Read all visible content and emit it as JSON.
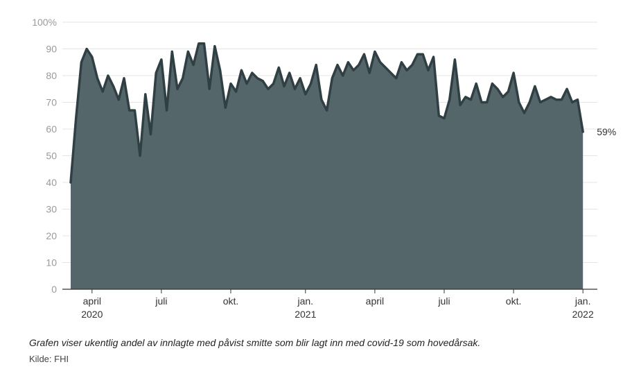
{
  "caption": "Grafen viser ukentlig andel av innlagte med påvist smitte som blir lagt inn med covid-19 som hovedårsak.",
  "source": "Kilde: FHI",
  "chart_data": {
    "type": "area",
    "title": "",
    "xlabel": "",
    "ylabel": "",
    "ylim": [
      0,
      100
    ],
    "y_ticks": [
      "0",
      "10",
      "20",
      "30",
      "40",
      "50",
      "60",
      "70",
      "80",
      "90",
      "100%"
    ],
    "x_ticks": [
      {
        "label": "april",
        "year": "2020",
        "week": 4
      },
      {
        "label": "juli",
        "year": "",
        "week": 17
      },
      {
        "label": "okt.",
        "year": "",
        "week": 30
      },
      {
        "label": "jan.",
        "year": "2021",
        "week": 44
      },
      {
        "label": "april",
        "year": "",
        "week": 57
      },
      {
        "label": "juli",
        "year": "",
        "week": 70
      },
      {
        "label": "okt.",
        "year": "",
        "week": 83
      },
      {
        "label": "jan.",
        "year": "2022",
        "week": 96
      }
    ],
    "end_label": "59%",
    "grid": true,
    "fill_color": "#55666a",
    "line_color": "#2f3f44",
    "values": [
      40,
      64,
      85,
      90,
      87,
      79,
      74,
      80,
      76,
      71,
      79,
      67,
      67,
      50,
      73,
      58,
      81,
      86,
      67,
      89,
      75,
      79,
      89,
      84,
      92,
      92,
      75,
      91,
      82,
      68,
      77,
      74,
      82,
      77,
      81,
      79,
      78,
      75,
      77,
      83,
      76,
      81,
      75,
      79,
      73,
      77,
      84,
      71,
      67,
      79,
      84,
      80,
      85,
      82,
      84,
      88,
      81,
      89,
      85,
      83,
      81,
      79,
      85,
      82,
      84,
      88,
      88,
      82,
      87,
      65,
      64,
      71,
      86,
      69,
      72,
      71,
      77,
      70,
      70,
      77,
      75,
      72,
      74,
      81,
      70,
      66,
      70,
      76,
      70,
      71,
      72,
      71,
      71,
      75,
      70,
      71,
      59
    ]
  }
}
